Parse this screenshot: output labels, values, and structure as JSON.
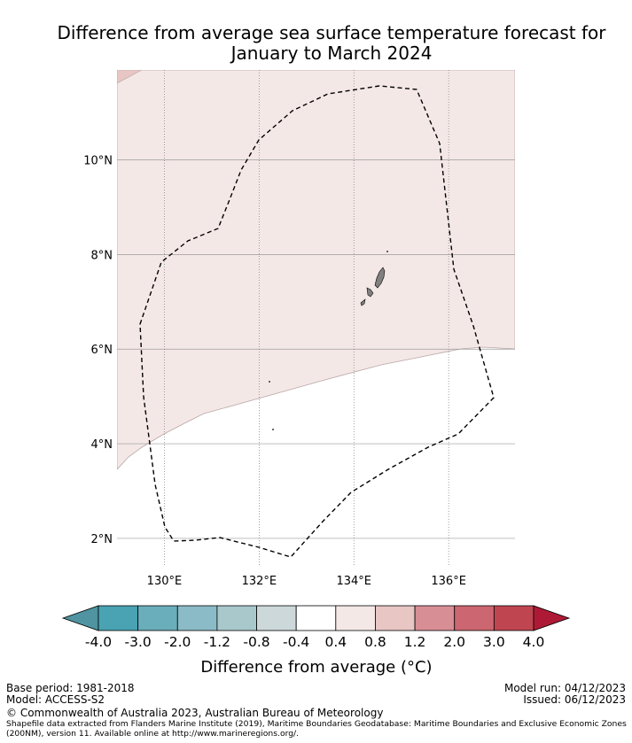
{
  "title": {
    "line1": "Difference from average sea surface temperature forecast for",
    "line2": "January to March 2024"
  },
  "map": {
    "lat_ticks": [
      {
        "value": 10,
        "label": "10°N"
      },
      {
        "value": 8,
        "label": "8°N"
      },
      {
        "value": 6,
        "label": "6°N"
      },
      {
        "value": 4,
        "label": "4°N"
      },
      {
        "value": 2,
        "label": "2°N"
      }
    ],
    "lon_ticks": [
      {
        "value": 130,
        "label": "130°E"
      },
      {
        "value": 132,
        "label": "132°E"
      },
      {
        "value": 134,
        "label": "134°E"
      },
      {
        "value": 136,
        "label": "136°E"
      }
    ],
    "lon_range": [
      129.0,
      137.4
    ],
    "lat_range": [
      1.4,
      11.9
    ],
    "anomaly_band": "0.4 to 0.8",
    "anomaly_color": "#f4e8e7",
    "anomaly_edge_color": "#b8a6a5",
    "warmer_band": "0.8 to 1.2",
    "warmer_color": "#e7c6c3",
    "eez_line": "dashed",
    "land_color": "#808080"
  },
  "colorbar": {
    "labels": [
      "-4.0",
      "-3.0",
      "-2.0",
      "-1.2",
      "-0.8",
      "-0.4",
      "0.4",
      "0.8",
      "1.2",
      "2.0",
      "3.0",
      "4.0"
    ],
    "colors": [
      "#4f94a0",
      "#49a3b2",
      "#6aadbb",
      "#8bbbc6",
      "#a9c8cc",
      "#ccd8d9",
      "#ffffff",
      "#f4e8e7",
      "#e7c6c3",
      "#d88e95",
      "#cc6670",
      "#bf4651",
      "#ae1a35"
    ],
    "title": "Difference from average (°C)"
  },
  "footer": {
    "base_period": "Base period: 1981-2018",
    "model": "Model: ACCESS-S2",
    "model_run": "Model run: 04/12/2023",
    "issued": "Issued: 06/12/2023",
    "copyright": "© Commonwealth of Australia 2023, Australian Bureau of Meteorology",
    "shapefile_line1": "Shapefile data extracted from Flanders Marine Institute (2019), Maritime Boundaries Geodatabase: Maritime Boundaries and Exclusive Economic Zones",
    "shapefile_line2": "(200NM), version 11. Available online at http://www.marineregions.org/."
  }
}
